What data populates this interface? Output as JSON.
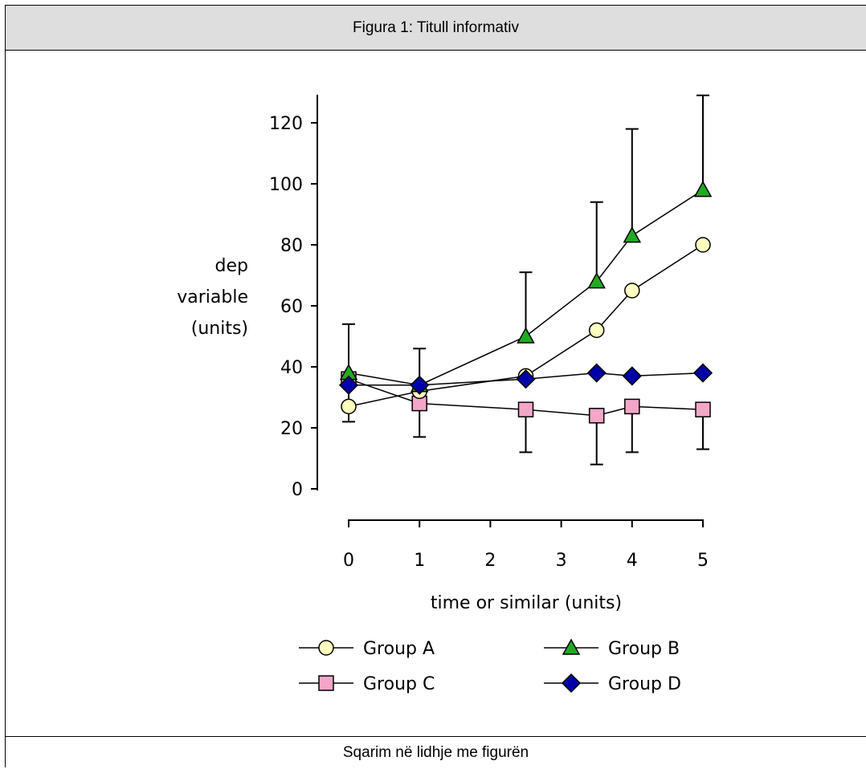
{
  "figure": {
    "title": "Figura 1: Titull informativ",
    "caption": "Sqarim në lidhje me figurën"
  },
  "chart_data": {
    "type": "line",
    "title": "",
    "xlabel": "time or similar (units)",
    "ylabel_lines": [
      "dep",
      "variable",
      "(units)"
    ],
    "x_ticks": [
      0,
      1,
      2,
      3,
      4,
      5
    ],
    "y_ticks": [
      0,
      20,
      40,
      60,
      80,
      100,
      120
    ],
    "xlim": [
      0,
      5
    ],
    "ylim": [
      0,
      120
    ],
    "grid": false,
    "legend_position": "bottom",
    "series": [
      {
        "name": "Group A",
        "marker": "circle",
        "color": "#ffffc0",
        "x": [
          0,
          1,
          2.5,
          3.5,
          4,
          5
        ],
        "y": [
          27,
          32,
          37,
          52,
          65,
          80
        ]
      },
      {
        "name": "Group B",
        "marker": "triangle",
        "color": "#22aa22",
        "x": [
          0,
          1,
          2.5,
          3.5,
          4,
          5
        ],
        "y": [
          38,
          34,
          50,
          68,
          83,
          98
        ],
        "error_upper": [
          54,
          46,
          71,
          94,
          118,
          129
        ]
      },
      {
        "name": "Group C",
        "marker": "square",
        "color": "#f4a6c8",
        "x": [
          0,
          1,
          2.5,
          3.5,
          4,
          5
        ],
        "y": [
          36,
          28,
          26,
          24,
          27,
          26
        ],
        "error_lower": [
          22,
          17,
          12,
          8,
          12,
          13
        ]
      },
      {
        "name": "Group D",
        "marker": "diamond",
        "color": "#0000a8",
        "x": [
          0,
          1,
          2.5,
          3.5,
          4,
          5
        ],
        "y": [
          34,
          34,
          36,
          38,
          37,
          38
        ]
      }
    ]
  }
}
